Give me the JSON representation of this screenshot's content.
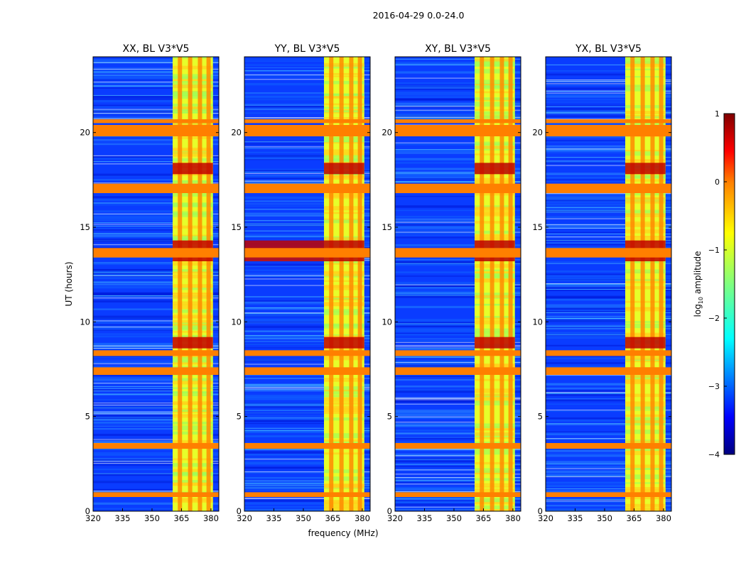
{
  "figure": {
    "suptitle": "2016-04-29 0.0-24.0",
    "xlabel": "frequency (MHz)",
    "ylabel": "UT (hours)"
  },
  "chart_data": {
    "type": "heatmap",
    "panels": [
      {
        "title": "XX, BL V3*V5",
        "product": "XX"
      },
      {
        "title": "YY, BL V3*V5",
        "product": "YY"
      },
      {
        "title": "XY, BL V3*V5",
        "product": "XY"
      },
      {
        "title": "YX, BL V3*V5",
        "product": "YX"
      }
    ],
    "xlim": [
      320,
      384
    ],
    "xticks": [
      320,
      335,
      350,
      365,
      380
    ],
    "xtick_labels": [
      "320",
      "335",
      "350",
      "365",
      "380"
    ],
    "ylim": [
      0,
      24
    ],
    "yticks": [
      0,
      5,
      10,
      15,
      20
    ],
    "ytick_labels": [
      "0",
      "5",
      "10",
      "15",
      "20"
    ],
    "colorbar": {
      "label": "log₁₀ amplitude",
      "label_main": "log",
      "label_sub": "10",
      "label_rest": " amplitude",
      "range": [
        -4,
        1
      ],
      "ticks": [
        1,
        0,
        -1,
        -2,
        -3,
        -4
      ],
      "tick_labels": [
        "1",
        "0",
        "−1",
        "−2",
        "−3",
        "−4"
      ],
      "colormap": "jet"
    },
    "rfi_freq_band_mhz": [
      360.5,
      381
    ],
    "rfi_freq_columns_mhz": [
      364.2,
      369.4,
      374.4,
      378.8
    ],
    "flagged_time_bands_hours": [
      [
        0.75,
        1.0
      ],
      [
        3.3,
        3.6
      ],
      [
        7.2,
        7.6
      ],
      [
        8.2,
        8.5
      ],
      [
        13.4,
        13.9
      ],
      [
        16.8,
        17.3
      ],
      [
        19.8,
        20.4
      ],
      [
        20.5,
        20.7
      ]
    ],
    "strong_time_bands_hours": [
      [
        13.2,
        14.3
      ],
      [
        17.8,
        18.4
      ],
      [
        8.6,
        9.2
      ]
    ]
  },
  "colors": {
    "background": "#ffffff",
    "axis": "#000000",
    "jet_stops": [
      "#00007f",
      "#0000ff",
      "#007fff",
      "#00ffff",
      "#7fff7f",
      "#ffff00",
      "#ff7f00",
      "#ff0000",
      "#7f0000"
    ]
  }
}
